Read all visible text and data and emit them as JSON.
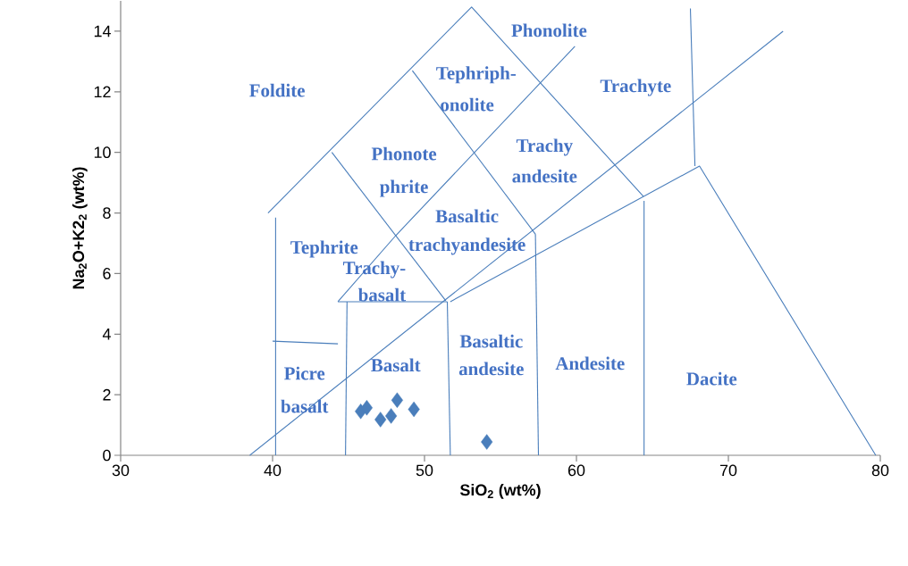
{
  "chart_data": {
    "type": "scatter",
    "xlabel": "SiO$_{2}$ (wt%)",
    "ylabel": "Na$_{2}$O+K2$_{2}$ (wt%)",
    "xlim": [
      30,
      80
    ],
    "ylim": [
      0,
      15
    ],
    "xticks": [
      30,
      40,
      50,
      60,
      70,
      80
    ],
    "yticks": [
      0,
      2,
      4,
      6,
      8,
      10,
      12,
      14
    ],
    "grid": false,
    "series": [
      {
        "marker": "diamond",
        "color": "#4a7ebb",
        "x": [
          45.8,
          46.2,
          47.1,
          47.8,
          48.2,
          49.3,
          54.1
        ],
        "values": [
          1.45,
          1.57,
          1.18,
          1.3,
          1.82,
          1.52,
          0.44
        ]
      },
      {
        "type": "line",
        "color": "#4a7ebb",
        "x": [
          39.7,
          53.1,
          64.4
        ],
        "values": [
          8.0,
          14.8,
          8.55
        ]
      },
      {
        "type": "line",
        "color": "#4a7ebb",
        "x": [
          43.9,
          51.4
        ],
        "values": [
          10.0,
          5.1
        ]
      },
      {
        "type": "line",
        "color": "#4a7ebb",
        "x": [
          49.2,
          57.3
        ],
        "values": [
          12.7,
          7.3
        ]
      },
      {
        "type": "line",
        "color": "#4a7ebb",
        "x": [
          44.3,
          51.5
        ],
        "values": [
          5.07,
          5.07
        ]
      },
      {
        "type": "line",
        "color": "#4a7ebb",
        "x": [
          44.9,
          44.8
        ],
        "values": [
          5.07,
          0
        ]
      },
      {
        "type": "line",
        "color": "#4a7ebb",
        "x": [
          40.2,
          40.2
        ],
        "values": [
          7.85,
          0
        ]
      },
      {
        "type": "line",
        "color": "#4a7ebb",
        "x": [
          40.0,
          44.3
        ],
        "values": [
          3.77,
          3.68
        ]
      },
      {
        "type": "line",
        "color": "#4a7ebb",
        "x": [
          38.5,
          73.6
        ],
        "values": [
          0,
          14.0
        ]
      },
      {
        "type": "line",
        "color": "#4a7ebb",
        "x": [
          51.7,
          68.1,
          79.7
        ],
        "values": [
          5.07,
          9.55,
          0
        ]
      },
      {
        "type": "line",
        "color": "#4a7ebb",
        "x": [
          67.5,
          67.8
        ],
        "values": [
          14.75,
          9.55
        ]
      },
      {
        "type": "line",
        "color": "#4a7ebb",
        "x": [
          51.5,
          51.7
        ],
        "values": [
          5.07,
          0
        ]
      },
      {
        "type": "line",
        "color": "#4a7ebb",
        "x": [
          57.3,
          57.5
        ],
        "values": [
          7.3,
          0
        ]
      },
      {
        "type": "line",
        "color": "#4a7ebb",
        "x": [
          64.45,
          64.45
        ],
        "values": [
          8.4,
          0
        ]
      },
      {
        "type": "line",
        "color": "#4a7ebb",
        "x": [
          44.3,
          48.1,
          59.9
        ],
        "values": [
          5.07,
          7.25,
          13.5
        ]
      }
    ],
    "annotations": [
      "Foldite",
      "Phonolite",
      "Tephriph-",
      "onolite",
      "Trachyte",
      "Phonote",
      "phrite",
      "Trachy",
      "andesite",
      "Basaltic",
      "trachyandesite",
      "Tephrite",
      "Trachy-",
      "basalt",
      "Picre",
      "basalt",
      "Basalt",
      "Basaltic",
      "andesite",
      "Andesite",
      "Dacite"
    ]
  }
}
